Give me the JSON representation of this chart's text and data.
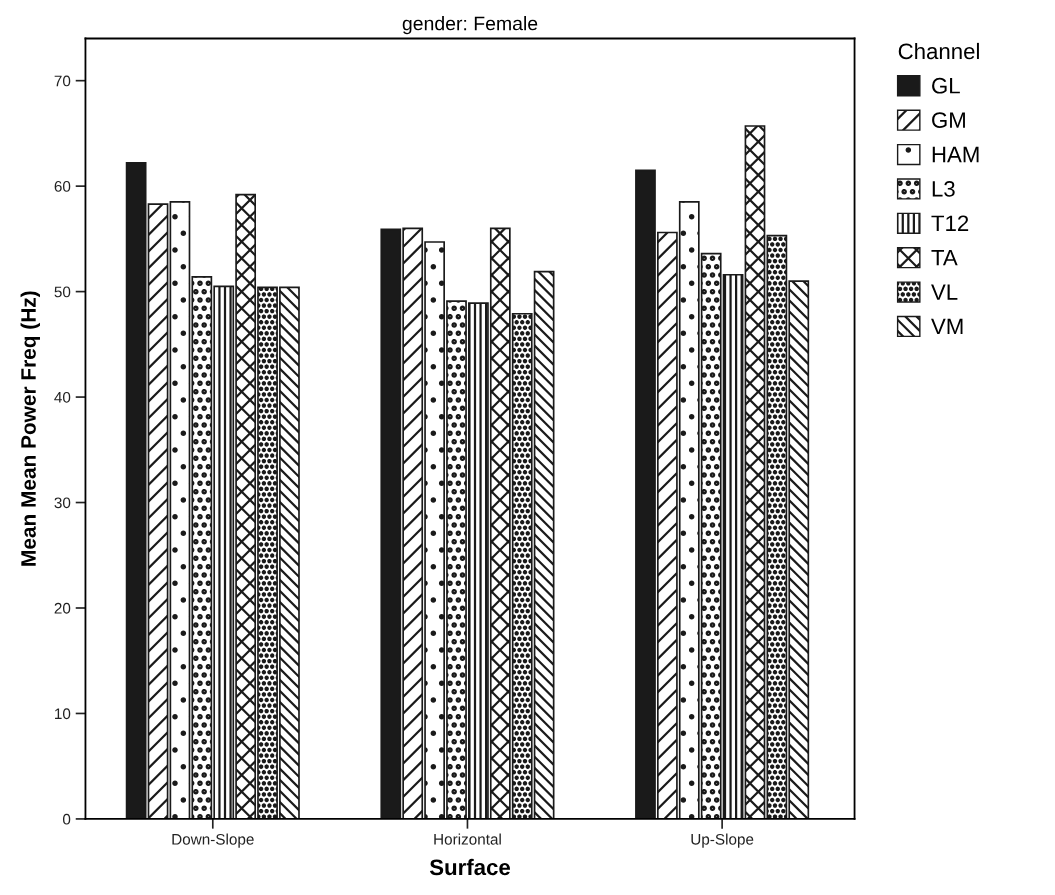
{
  "chart_data": {
    "type": "bar",
    "title": "gender: Female",
    "xlabel": "Surface",
    "ylabel": "Mean Mean Power Freq (Hz)",
    "legend_title": "Channel",
    "categories": [
      "Down-Slope",
      "Horizontal",
      "Up-Slope"
    ],
    "series": [
      {
        "name": "GL",
        "color": "#1a1a1a",
        "values": [
          62.2,
          55.9,
          61.5
        ]
      },
      {
        "name": "GM",
        "color": "#1a1a1a",
        "values": [
          58.3,
          56.0,
          55.6
        ]
      },
      {
        "name": "HAM",
        "color": "#1a1a1a",
        "values": [
          58.5,
          54.7,
          58.5
        ]
      },
      {
        "name": "L3",
        "color": "#1a1a1a",
        "values": [
          51.4,
          49.1,
          53.6
        ]
      },
      {
        "name": "T12",
        "color": "#1a1a1a",
        "values": [
          50.5,
          48.9,
          51.6
        ]
      },
      {
        "name": "TA",
        "color": "#1a1a1a",
        "values": [
          59.2,
          56.0,
          65.7
        ]
      },
      {
        "name": "VL",
        "color": "#1a1a1a",
        "values": [
          50.4,
          47.9,
          55.3
        ]
      },
      {
        "name": "VM",
        "color": "#1a1a1a",
        "values": [
          50.4,
          51.9,
          51.0
        ]
      }
    ],
    "ylim": [
      0,
      74
    ],
    "yticks": [
      0,
      10,
      20,
      30,
      40,
      50,
      60,
      70
    ],
    "grid": false,
    "legend": "right"
  }
}
